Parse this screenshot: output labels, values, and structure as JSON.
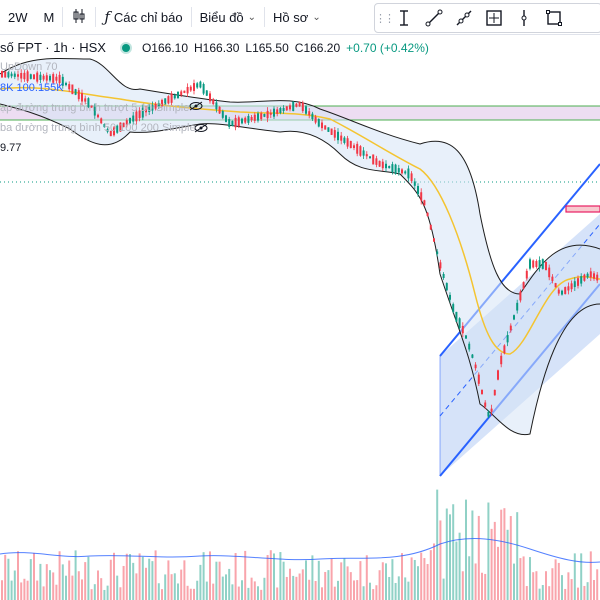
{
  "toolbar": {
    "interval": "2W",
    "interval2": "M",
    "indicators_label": "Các chỉ báo",
    "chart_label": "Biểu đồ",
    "profile_label": "Hồ sơ"
  },
  "legend": {
    "symbol_title": "số FPT · 1h · HSX",
    "open": "O166.10",
    "high": "H166.30",
    "low": "L165.50",
    "close": "C166.20",
    "change": "+0.70 (+0.42%)"
  },
  "indicators": {
    "line1": "UpDown 70",
    "line2_prefix": "8K",
    "line2_value": "100.155K",
    "line3": "ạp đường trung bình trượt 5 10 Simple",
    "line4": "ba đường trung bình 50 100 200 Simple",
    "line5": "9.77"
  },
  "colors": {
    "up": "#089981",
    "down": "#f23645",
    "band": "#1e1e1e",
    "ma": "#f4c430",
    "channel": "#2962ff"
  },
  "icons": [
    "candles-icon",
    "fx-icon",
    "text-cursor-icon",
    "trendline-icon",
    "ray-icon",
    "crosshair-box-icon",
    "vertical-line-icon",
    "rectangle-icon"
  ]
}
